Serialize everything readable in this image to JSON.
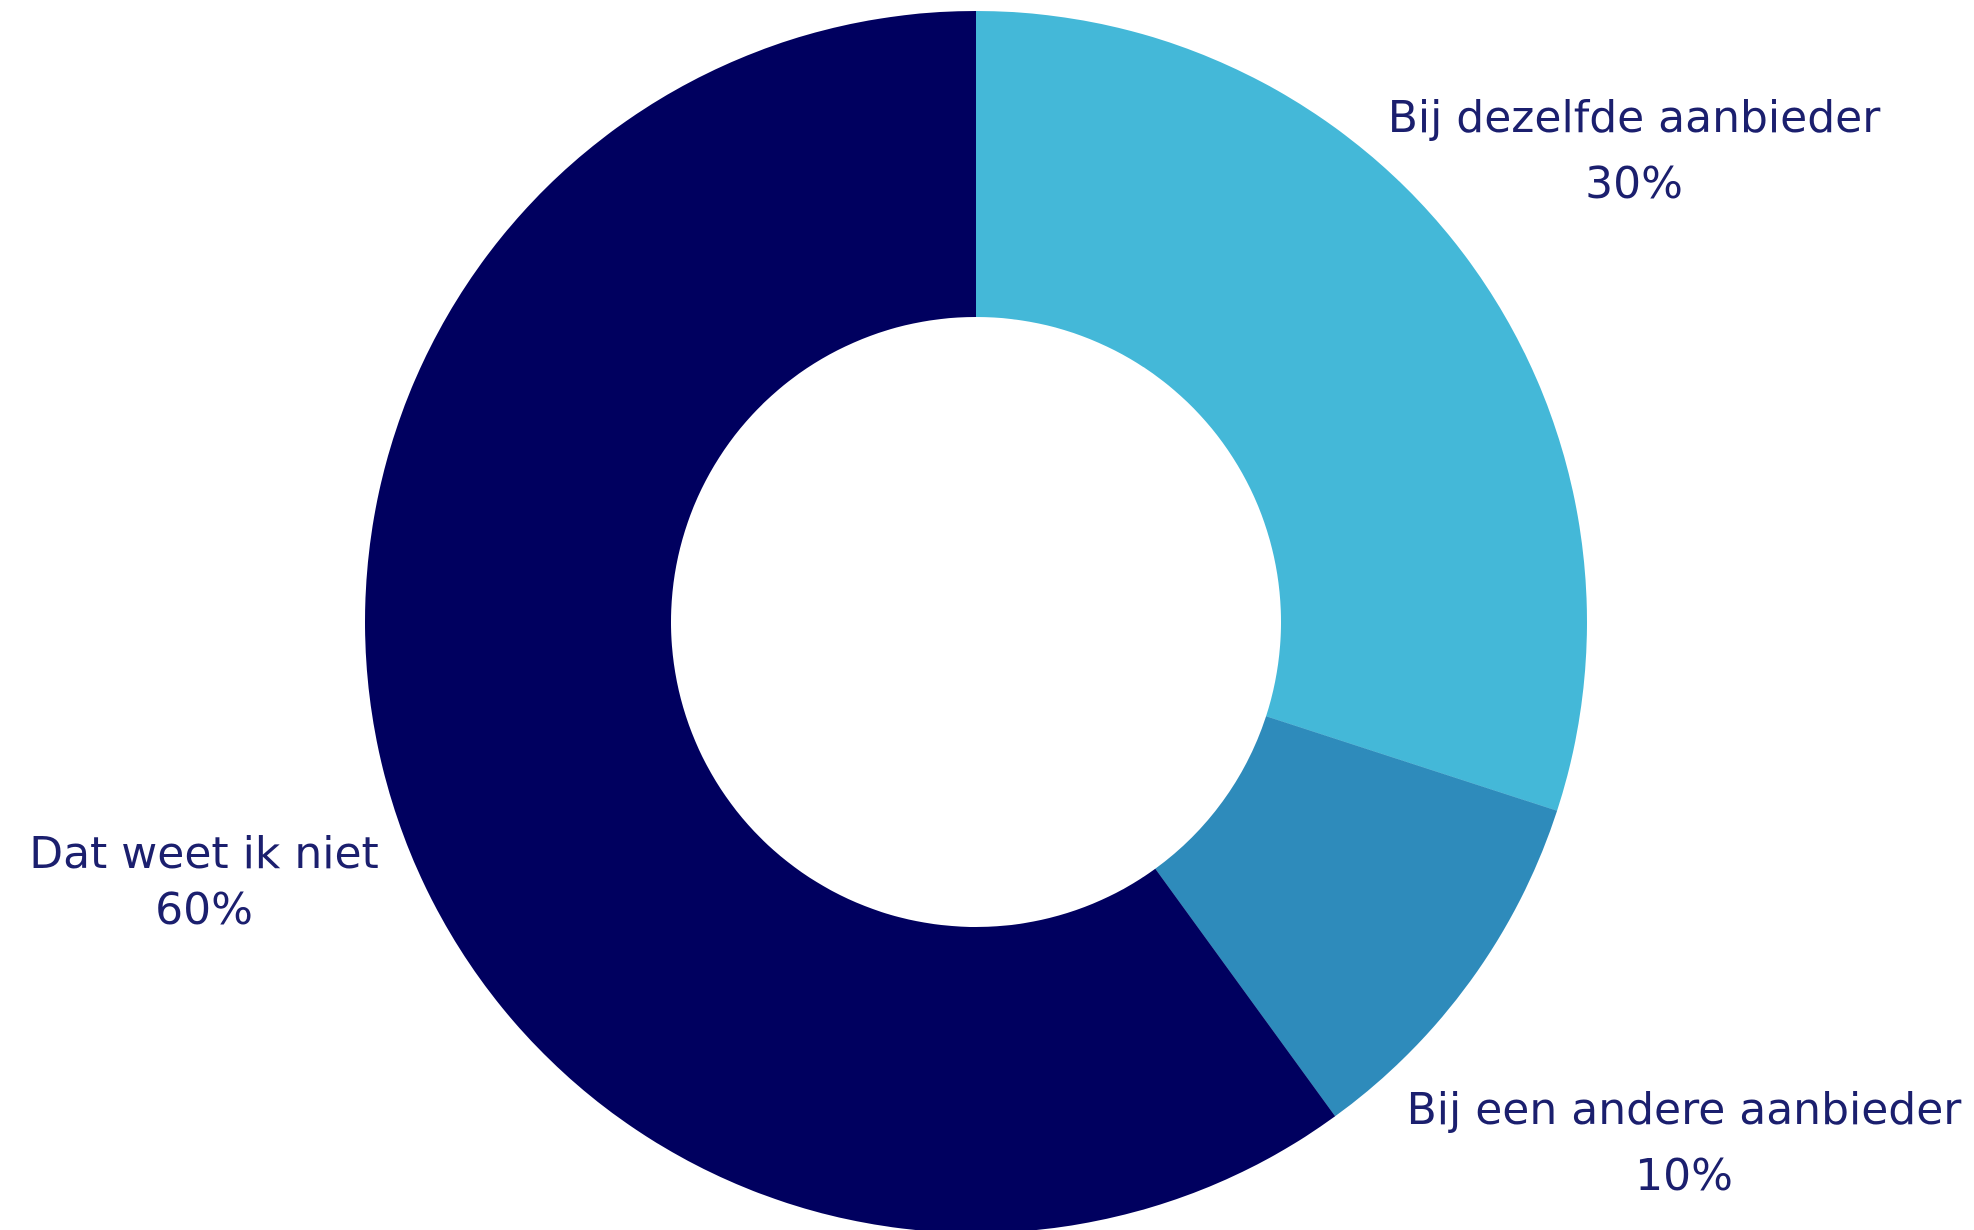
{
  "chart_data": {
    "type": "pie",
    "donut": true,
    "title": "",
    "slices": [
      {
        "label": "Bij dezelfde aanbieder",
        "value": 30,
        "value_label": "30%",
        "color": "#44b8d8"
      },
      {
        "label": "Bij een andere aanbieder",
        "value": 10,
        "value_label": "10%",
        "color": "#2e8bbb"
      },
      {
        "label": "Dat weet ik niet",
        "value": 60,
        "value_label": "60%",
        "color": "#00005f"
      }
    ],
    "start_angle": "12 o'clock",
    "direction": "clockwise",
    "legend": "none"
  }
}
